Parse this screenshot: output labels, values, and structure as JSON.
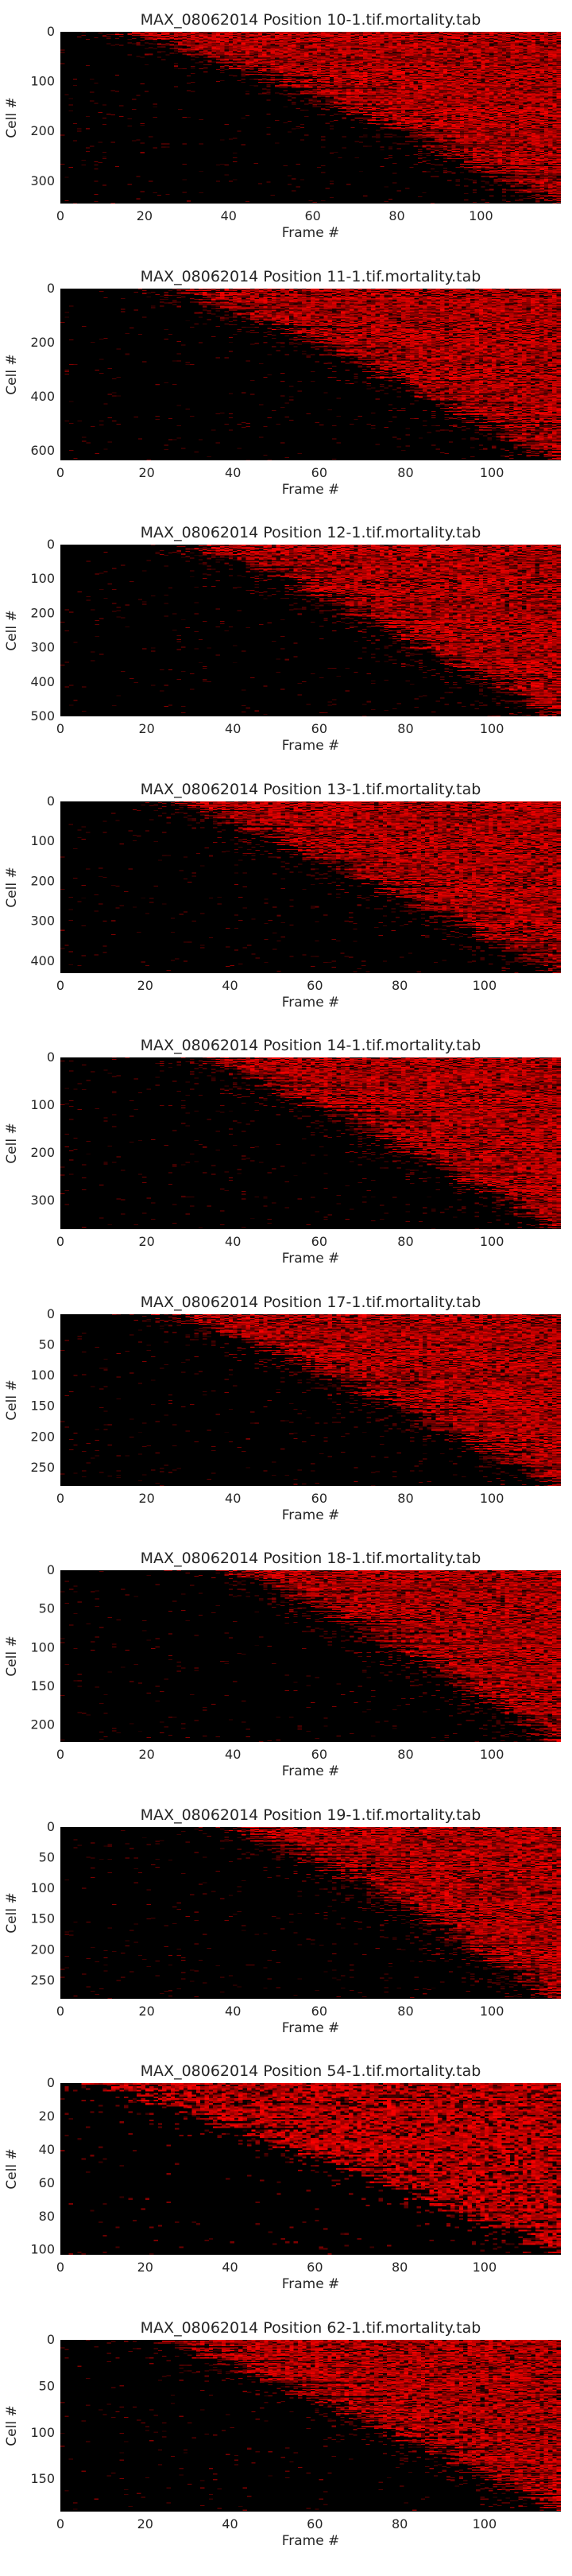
{
  "figure": {
    "colormap": {
      "low": "#000000",
      "high": "#ff0000"
    },
    "background": "#ffffff"
  },
  "chart_data": [
    {
      "type": "heatmap",
      "title": "MAX_08062014 Position 10-1.tif.mortality.tab",
      "xlabel": "Frame #",
      "ylabel": "Cell #",
      "n_frames": 119,
      "n_cells": 345,
      "xlim": [
        0,
        119
      ],
      "ylim": [
        345,
        0
      ],
      "xticks": [
        0,
        20,
        40,
        60,
        80,
        100
      ],
      "yticks": [
        0,
        100,
        200,
        300
      ],
      "death_frame_range": [
        15,
        118
      ],
      "seed": 10
    },
    {
      "type": "heatmap",
      "title": "MAX_08062014 Position 11-1.tif.mortality.tab",
      "xlabel": "Frame #",
      "ylabel": "Cell #",
      "n_frames": 116,
      "n_cells": 635,
      "xlim": [
        0,
        116
      ],
      "ylim": [
        635,
        0
      ],
      "xticks": [
        0,
        20,
        40,
        60,
        80,
        100
      ],
      "yticks": [
        0,
        200,
        400,
        600
      ],
      "death_frame_range": [
        25,
        114
      ],
      "seed": 11
    },
    {
      "type": "heatmap",
      "title": "MAX_08062014 Position 12-1.tif.mortality.tab",
      "xlabel": "Frame #",
      "ylabel": "Cell #",
      "n_frames": 116,
      "n_cells": 500,
      "xlim": [
        0,
        116
      ],
      "ylim": [
        500,
        0
      ],
      "xticks": [
        0,
        20,
        40,
        60,
        80,
        100
      ],
      "yticks": [
        0,
        100,
        200,
        300,
        400,
        500
      ],
      "death_frame_range": [
        30,
        114
      ],
      "seed": 12
    },
    {
      "type": "heatmap",
      "title": "MAX_08062014 Position 13-1.tif.mortality.tab",
      "xlabel": "Frame #",
      "ylabel": "Cell #",
      "n_frames": 118,
      "n_cells": 430,
      "xlim": [
        0,
        118
      ],
      "ylim": [
        430,
        0
      ],
      "xticks": [
        0,
        20,
        40,
        60,
        80,
        100
      ],
      "yticks": [
        0,
        100,
        200,
        300,
        400
      ],
      "death_frame_range": [
        25,
        117
      ],
      "seed": 13
    },
    {
      "type": "heatmap",
      "title": "MAX_08062014 Position 14-1.tif.mortality.tab",
      "xlabel": "Frame #",
      "ylabel": "Cell #",
      "n_frames": 116,
      "n_cells": 360,
      "xlim": [
        0,
        116
      ],
      "ylim": [
        360,
        0
      ],
      "xticks": [
        0,
        20,
        40,
        60,
        80,
        100
      ],
      "yticks": [
        0,
        100,
        200,
        300
      ],
      "death_frame_range": [
        30,
        115
      ],
      "seed": 14
    },
    {
      "type": "heatmap",
      "title": "MAX_08062014 Position 17-1.tif.mortality.tab",
      "xlabel": "Frame #",
      "ylabel": "Cell #",
      "n_frames": 116,
      "n_cells": 280,
      "xlim": [
        0,
        116
      ],
      "ylim": [
        280,
        0
      ],
      "xticks": [
        0,
        20,
        40,
        60,
        80,
        100
      ],
      "yticks": [
        0,
        50,
        100,
        150,
        200,
        250
      ],
      "death_frame_range": [
        25,
        115
      ],
      "seed": 17
    },
    {
      "type": "heatmap",
      "title": "MAX_08062014 Position 18-1.tif.mortality.tab",
      "xlabel": "Frame #",
      "ylabel": "Cell #",
      "n_frames": 116,
      "n_cells": 222,
      "xlim": [
        0,
        116
      ],
      "ylim": [
        222,
        0
      ],
      "xticks": [
        0,
        20,
        40,
        60,
        80,
        100
      ],
      "yticks": [
        0,
        50,
        100,
        150,
        200
      ],
      "death_frame_range": [
        40,
        115
      ],
      "seed": 18
    },
    {
      "type": "heatmap",
      "title": "MAX_08062014 Position 19-1.tif.mortality.tab",
      "xlabel": "Frame #",
      "ylabel": "Cell #",
      "n_frames": 116,
      "n_cells": 280,
      "xlim": [
        0,
        116
      ],
      "ylim": [
        280,
        0
      ],
      "xticks": [
        0,
        20,
        40,
        60,
        80,
        100
      ],
      "yticks": [
        0,
        50,
        100,
        150,
        200,
        250
      ],
      "death_frame_range": [
        40,
        115
      ],
      "seed": 19
    },
    {
      "type": "heatmap",
      "title": "MAX_08062014 Position 54-1.tif.mortality.tab",
      "xlabel": "Frame #",
      "ylabel": "Cell #",
      "n_frames": 118,
      "n_cells": 103,
      "xlim": [
        0,
        118
      ],
      "ylim": [
        103,
        0
      ],
      "xticks": [
        0,
        20,
        40,
        60,
        80,
        100
      ],
      "yticks": [
        0,
        20,
        40,
        60,
        80,
        100
      ],
      "death_frame_range": [
        5,
        117
      ],
      "seed": 54
    },
    {
      "type": "heatmap",
      "title": "MAX_08062014 Position 62-1.tif.mortality.tab",
      "xlabel": "Frame #",
      "ylabel": "Cell #",
      "n_frames": 118,
      "n_cells": 185,
      "xlim": [
        0,
        118
      ],
      "ylim": [
        185,
        0
      ],
      "xticks": [
        0,
        20,
        40,
        60,
        80,
        100
      ],
      "yticks": [
        0,
        50,
        100,
        150
      ],
      "death_frame_range": [
        20,
        118
      ],
      "seed": 62
    }
  ]
}
